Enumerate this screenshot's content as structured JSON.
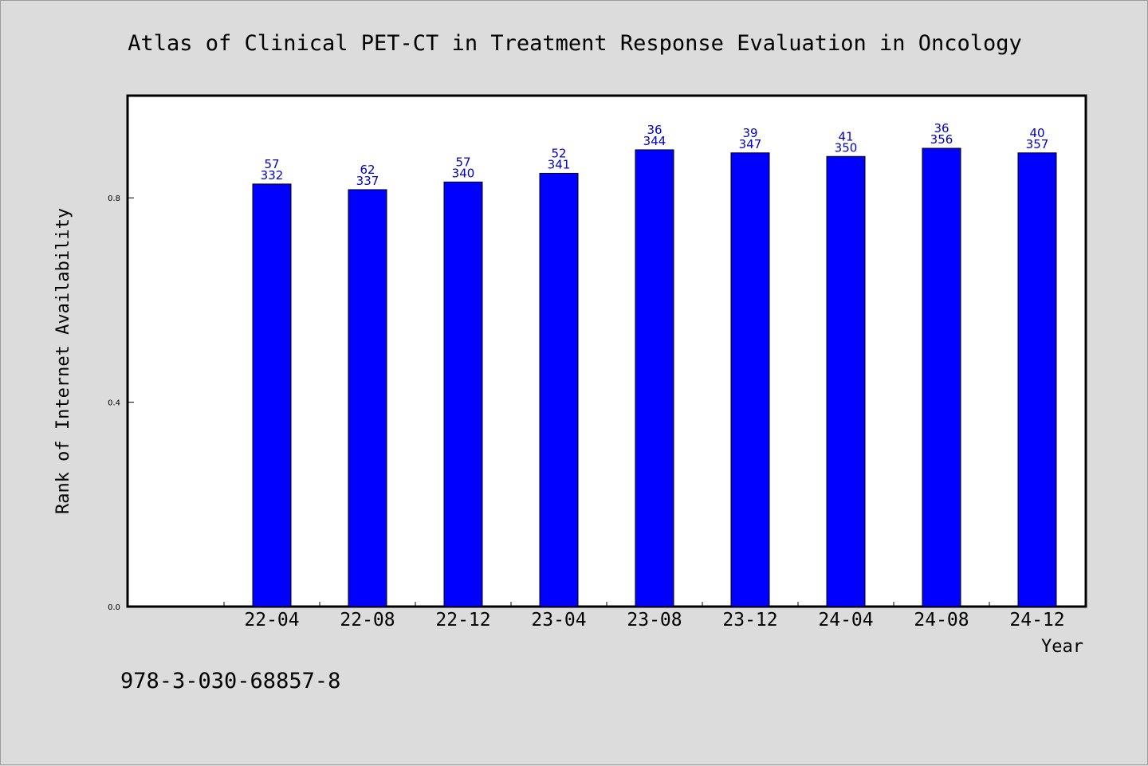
{
  "chart_data": {
    "type": "bar",
    "title": "Atlas of Clinical PET-CT in Treatment Response Evaluation in Oncology",
    "xlabel": "Year",
    "ylabel": "Rank of Internet Availability",
    "ylim": [
      0,
      1.0
    ],
    "yticks": [
      "0.0",
      "0.4",
      "0.8"
    ],
    "categories": [
      "22-04",
      "22-08",
      "22-12",
      "23-04",
      "23-08",
      "23-12",
      "24-04",
      "24-08",
      "24-12"
    ],
    "values": [
      0.827,
      0.816,
      0.831,
      0.848,
      0.894,
      0.888,
      0.881,
      0.897,
      0.888
    ],
    "label_top": [
      "57",
      "62",
      "57",
      "52",
      "36",
      "39",
      "41",
      "36",
      "40"
    ],
    "label_bottom": [
      "332",
      "337",
      "340",
      "341",
      "344",
      "347",
      "350",
      "356",
      "357"
    ],
    "grid": false,
    "bar_color": "#0000ff",
    "label_color": "#0000cc"
  },
  "footer": "978-3-030-68857-8"
}
